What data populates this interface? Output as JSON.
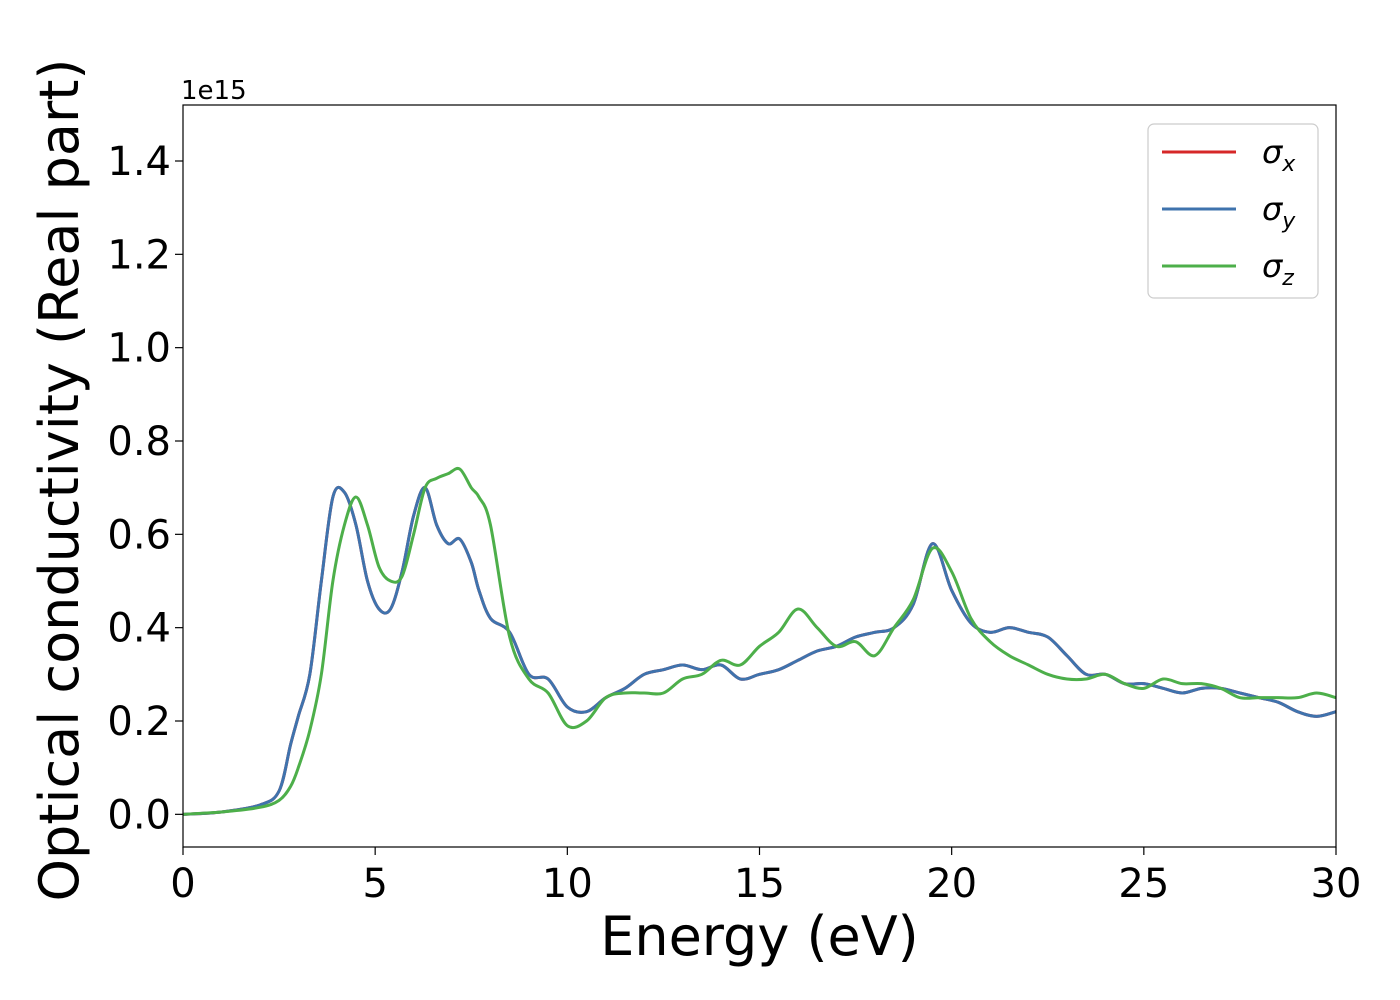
{
  "chart_data": {
    "type": "line",
    "xlabel": "Energy (eV)",
    "ylabel": "Optical conductivity (Real part)",
    "y_offset_label": "1e15",
    "xlim": [
      0,
      30
    ],
    "ylim": [
      -0.07,
      1.52
    ],
    "xticks": [
      0,
      5,
      10,
      15,
      20,
      25,
      30
    ],
    "xtick_labels": [
      "0",
      "5",
      "10",
      "15",
      "20",
      "25",
      "30"
    ],
    "yticks": [
      0.0,
      0.2,
      0.4,
      0.6,
      0.8,
      1.0,
      1.2,
      1.4
    ],
    "ytick_labels": [
      "0.0",
      "0.2",
      "0.4",
      "0.6",
      "0.8",
      "1.0",
      "1.2",
      "1.4"
    ],
    "grid": false,
    "legend_position": "top-right",
    "series": [
      {
        "name": "σx",
        "legend_symbol": "σ",
        "legend_sub": "x",
        "color": "#d62728",
        "x": [
          0,
          1,
          2,
          2.5,
          2.8,
          3.0,
          3.3,
          3.6,
          3.9,
          4.2,
          4.5,
          4.8,
          5.1,
          5.4,
          5.7,
          6.0,
          6.3,
          6.6,
          6.9,
          7.2,
          7.5,
          7.7,
          8.0,
          8.5,
          9.0,
          9.5,
          10.0,
          10.5,
          11.0,
          11.5,
          12.0,
          12.5,
          13.0,
          13.5,
          14.0,
          14.5,
          15.0,
          15.5,
          16.0,
          16.5,
          17.0,
          17.5,
          18.0,
          18.5,
          19.0,
          19.5,
          20.0,
          20.5,
          21.0,
          21.5,
          22.0,
          22.5,
          23.0,
          23.5,
          24.0,
          24.5,
          25.0,
          25.5,
          26.0,
          26.5,
          27.0,
          27.5,
          28.0,
          28.5,
          29.0,
          29.5,
          30.0
        ],
        "values": [
          0.0,
          0.005,
          0.02,
          0.05,
          0.15,
          0.21,
          0.3,
          0.5,
          0.68,
          0.69,
          0.62,
          0.5,
          0.44,
          0.44,
          0.52,
          0.64,
          0.7,
          0.62,
          0.58,
          0.59,
          0.54,
          0.48,
          0.42,
          0.39,
          0.3,
          0.29,
          0.23,
          0.22,
          0.25,
          0.27,
          0.3,
          0.31,
          0.32,
          0.31,
          0.32,
          0.29,
          0.3,
          0.31,
          0.33,
          0.35,
          0.36,
          0.38,
          0.39,
          0.4,
          0.45,
          0.58,
          0.48,
          0.41,
          0.39,
          0.4,
          0.39,
          0.38,
          0.34,
          0.3,
          0.3,
          0.28,
          0.28,
          0.27,
          0.26,
          0.27,
          0.27,
          0.26,
          0.25,
          0.24,
          0.22,
          0.21,
          0.22
        ]
      },
      {
        "name": "σy",
        "legend_symbol": "σ",
        "legend_sub": "y",
        "color": "#3f73ad",
        "x": [
          0,
          1,
          2,
          2.5,
          2.8,
          3.0,
          3.3,
          3.6,
          3.9,
          4.2,
          4.5,
          4.8,
          5.1,
          5.4,
          5.7,
          6.0,
          6.3,
          6.6,
          6.9,
          7.2,
          7.5,
          7.7,
          8.0,
          8.5,
          9.0,
          9.5,
          10.0,
          10.5,
          11.0,
          11.5,
          12.0,
          12.5,
          13.0,
          13.5,
          14.0,
          14.5,
          15.0,
          15.5,
          16.0,
          16.5,
          17.0,
          17.5,
          18.0,
          18.5,
          19.0,
          19.5,
          20.0,
          20.5,
          21.0,
          21.5,
          22.0,
          22.5,
          23.0,
          23.5,
          24.0,
          24.5,
          25.0,
          25.5,
          26.0,
          26.5,
          27.0,
          27.5,
          28.0,
          28.5,
          29.0,
          29.5,
          30.0
        ],
        "values": [
          0.0,
          0.005,
          0.02,
          0.05,
          0.15,
          0.21,
          0.3,
          0.5,
          0.68,
          0.69,
          0.62,
          0.5,
          0.44,
          0.44,
          0.52,
          0.64,
          0.7,
          0.62,
          0.58,
          0.59,
          0.54,
          0.48,
          0.42,
          0.39,
          0.3,
          0.29,
          0.23,
          0.22,
          0.25,
          0.27,
          0.3,
          0.31,
          0.32,
          0.31,
          0.32,
          0.29,
          0.3,
          0.31,
          0.33,
          0.35,
          0.36,
          0.38,
          0.39,
          0.4,
          0.45,
          0.58,
          0.48,
          0.41,
          0.39,
          0.4,
          0.39,
          0.38,
          0.34,
          0.3,
          0.3,
          0.28,
          0.28,
          0.27,
          0.26,
          0.27,
          0.27,
          0.26,
          0.25,
          0.24,
          0.22,
          0.21,
          0.22
        ]
      },
      {
        "name": "σz",
        "legend_symbol": "σ",
        "legend_sub": "z",
        "color": "#4daf4a",
        "x": [
          0,
          1,
          2,
          2.5,
          2.8,
          3.0,
          3.3,
          3.6,
          3.9,
          4.2,
          4.5,
          4.8,
          5.1,
          5.4,
          5.7,
          6.0,
          6.3,
          6.6,
          6.9,
          7.2,
          7.5,
          7.7,
          8.0,
          8.5,
          9.0,
          9.5,
          10.0,
          10.5,
          11.0,
          11.5,
          12.0,
          12.5,
          13.0,
          13.5,
          14.0,
          14.5,
          15.0,
          15.5,
          16.0,
          16.5,
          17.0,
          17.5,
          18.0,
          18.5,
          19.0,
          19.5,
          20.0,
          20.5,
          21.0,
          21.5,
          22.0,
          22.5,
          23.0,
          23.5,
          24.0,
          24.5,
          25.0,
          25.5,
          26.0,
          26.5,
          27.0,
          27.5,
          28.0,
          28.5,
          29.0,
          29.5,
          30.0
        ],
        "values": [
          0.0,
          0.005,
          0.015,
          0.03,
          0.06,
          0.1,
          0.18,
          0.3,
          0.5,
          0.62,
          0.68,
          0.62,
          0.53,
          0.5,
          0.51,
          0.6,
          0.7,
          0.72,
          0.73,
          0.74,
          0.7,
          0.68,
          0.62,
          0.38,
          0.29,
          0.26,
          0.19,
          0.2,
          0.25,
          0.26,
          0.26,
          0.26,
          0.29,
          0.3,
          0.33,
          0.32,
          0.36,
          0.39,
          0.44,
          0.4,
          0.36,
          0.37,
          0.34,
          0.4,
          0.46,
          0.57,
          0.52,
          0.42,
          0.37,
          0.34,
          0.32,
          0.3,
          0.29,
          0.29,
          0.3,
          0.28,
          0.27,
          0.29,
          0.28,
          0.28,
          0.27,
          0.25,
          0.25,
          0.25,
          0.25,
          0.26,
          0.25
        ]
      }
    ]
  }
}
